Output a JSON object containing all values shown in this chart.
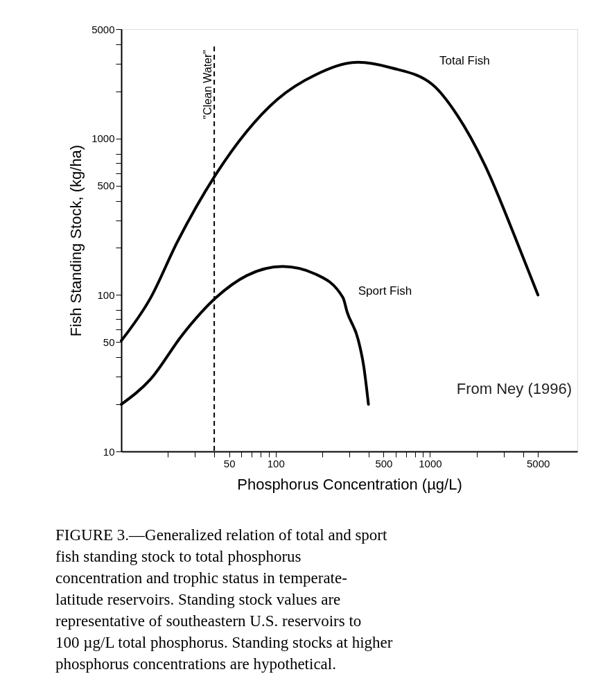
{
  "chart_data": {
    "type": "line",
    "xlabel": "Phosphorus Concentration (µg/L)",
    "ylabel": "Fish Standing Stock, (kg/ha)",
    "log": "xy",
    "xlim": [
      10,
      9000
    ],
    "ylim": [
      10,
      5000
    ],
    "xticks": [
      {
        "value": 20,
        "label": null
      },
      {
        "value": 30,
        "label": null
      },
      {
        "value": 40,
        "label": null
      },
      50,
      {
        "value": 60,
        "label": null
      },
      {
        "value": 70,
        "label": null
      },
      {
        "value": 80,
        "label": null
      },
      {
        "value": 90,
        "label": null
      },
      100,
      {
        "value": 200,
        "label": null
      },
      {
        "value": 300,
        "label": null
      },
      {
        "value": 400,
        "label": null
      },
      500,
      {
        "value": 600,
        "label": null
      },
      {
        "value": 700,
        "label": null
      },
      {
        "value": 800,
        "label": null
      },
      {
        "value": 900,
        "label": null
      },
      1000,
      {
        "value": 2000,
        "label": null
      },
      {
        "value": 3000,
        "label": null
      },
      {
        "value": 4000,
        "label": null
      },
      5000
    ],
    "yticks": [
      10,
      {
        "value": 20,
        "label": null
      },
      {
        "value": 30,
        "label": null
      },
      {
        "value": 40,
        "label": null
      },
      50,
      {
        "value": 60,
        "label": null
      },
      {
        "value": 70,
        "label": null
      },
      {
        "value": 80,
        "label": null
      },
      100,
      {
        "value": 200,
        "label": null
      },
      {
        "value": 300,
        "label": null
      },
      {
        "value": 400,
        "label": null
      },
      500,
      {
        "value": 600,
        "label": null
      },
      {
        "value": 700,
        "label": null
      },
      {
        "value": 800,
        "label": null
      },
      1000,
      {
        "value": 2000,
        "label": null
      },
      {
        "value": 3000,
        "label": null
      },
      {
        "value": 4000,
        "label": null
      },
      5000
    ],
    "legend": false,
    "grid": false,
    "series": [
      {
        "name": "Total Fish",
        "color": "#000000",
        "x": [
          10,
          15.5,
          23,
          41,
          65,
          102,
          181,
          342,
          560,
          1037,
          1500,
          2260,
          3550,
          5000
        ],
        "values": [
          51,
          96,
          217,
          590,
          1110,
          1770,
          2550,
          3070,
          2830,
          2210,
          1410,
          680,
          235,
          100
        ]
      },
      {
        "name": "Sport Fish",
        "color": "#000000",
        "x": [
          10,
          15.5,
          25,
          41,
          65,
          111,
          181,
          273,
          290,
          342,
          372,
          399
        ],
        "values": [
          20,
          29,
          56,
          96,
          133,
          152,
          136,
          96,
          78,
          52,
          35,
          20
        ]
      }
    ],
    "ref_lines": [
      {
        "axis": "x",
        "value": 40,
        "label": "\"Clean Water\"",
        "line_style": "dashed",
        "color": "#000000"
      }
    ],
    "annotations": [
      "From Ney (1996)",
      "FIGURE 3.—Generalized relation of total and sport fish standing stock to total phosphorus concentration and trophic status in temperate-latitude reservoirs. Standing stock values are representative of southeastern U.S. reservoirs to 100 µg/L total phosphorus. Standing stocks at higher phosphorus concentrations are hypothetical."
    ]
  }
}
